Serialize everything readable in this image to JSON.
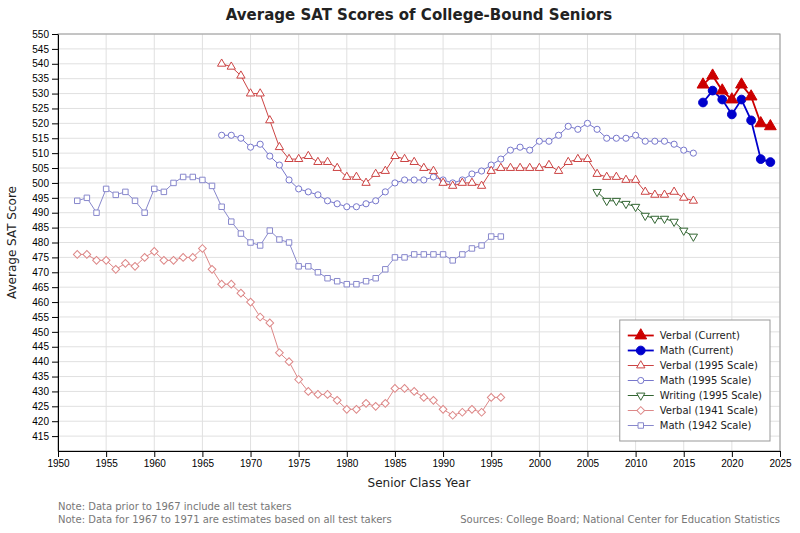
{
  "chart_data": {
    "type": "line",
    "title": "Average SAT Scores of College-Bound Seniors",
    "xlabel": "Senior Class Year",
    "ylabel": "Average SAT Score",
    "xlim": [
      1950,
      2025
    ],
    "ylim": [
      410,
      550
    ],
    "xticks": [
      1950,
      1955,
      1960,
      1965,
      1970,
      1975,
      1980,
      1985,
      1990,
      1995,
      2000,
      2005,
      2010,
      2015,
      2020,
      2025
    ],
    "yticks": [
      415,
      420,
      425,
      430,
      435,
      440,
      445,
      450,
      455,
      460,
      465,
      470,
      475,
      480,
      485,
      490,
      495,
      500,
      505,
      510,
      515,
      520,
      525,
      530,
      535,
      540,
      545,
      550
    ],
    "grid": true,
    "legend": "lower right",
    "annotations": [
      "Note: Data prior to 1967 include all test takers",
      "Note: Data for 1967 to 1971 are estimates based on all test takers",
      "Sources: College Board; National Center for Education Statistics"
    ],
    "series": [
      {
        "name": "Verbal (Current)",
        "color": "#cc0000",
        "marker": "triangle-up",
        "x": [
          2017,
          2018,
          2019,
          2020,
          2021,
          2022,
          2023,
          2024
        ],
        "values": [
          533,
          536,
          531,
          528,
          533,
          529,
          520,
          519
        ]
      },
      {
        "name": "Math (Current)",
        "color": "#0000cc",
        "marker": "circle",
        "x": [
          2017,
          2018,
          2019,
          2020,
          2021,
          2022,
          2023,
          2024
        ],
        "values": [
          527,
          531,
          528,
          523,
          528,
          521,
          508,
          507
        ]
      },
      {
        "name": "Verbal (1995 Scale)",
        "color": "#cc4444",
        "marker": "triangle-up-open",
        "x": [
          1967,
          1968,
          1969,
          1970,
          1971,
          1972,
          1973,
          1974,
          1975,
          1976,
          1977,
          1978,
          1979,
          1980,
          1981,
          1982,
          1983,
          1984,
          1985,
          1986,
          1987,
          1988,
          1989,
          1990,
          1991,
          1992,
          1993,
          1994,
          1995,
          1996,
          1997,
          1998,
          1999,
          2000,
          2001,
          2002,
          2003,
          2004,
          2005,
          2006,
          2007,
          2008,
          2009,
          2010,
          2011,
          2012,
          2013,
          2014,
          2015,
          2016
        ],
        "values": [
          540,
          539,
          536,
          530,
          530,
          521,
          512,
          508,
          508,
          509,
          507,
          507,
          505,
          502,
          502,
          500,
          503,
          504,
          509,
          508,
          507,
          505,
          504,
          500,
          499,
          500,
          500,
          499,
          504,
          505,
          505,
          505,
          505,
          505,
          506,
          504,
          507,
          508,
          508,
          503,
          502,
          502,
          501,
          501,
          497,
          496,
          496,
          497,
          495,
          494
        ]
      },
      {
        "name": "Math (1995 Scale)",
        "color": "#7777cc",
        "marker": "circle-open",
        "x": [
          1967,
          1968,
          1969,
          1970,
          1971,
          1972,
          1973,
          1974,
          1975,
          1976,
          1977,
          1978,
          1979,
          1980,
          1981,
          1982,
          1983,
          1984,
          1985,
          1986,
          1987,
          1988,
          1989,
          1990,
          1991,
          1992,
          1993,
          1994,
          1995,
          1996,
          1997,
          1998,
          1999,
          2000,
          2001,
          2002,
          2003,
          2004,
          2005,
          2006,
          2007,
          2008,
          2009,
          2010,
          2011,
          2012,
          2013,
          2014,
          2015,
          2016
        ],
        "values": [
          516,
          516,
          515,
          512,
          513,
          509,
          506,
          501,
          498,
          497,
          496,
          494,
          493,
          492,
          492,
          493,
          494,
          497,
          500,
          501,
          501,
          501,
          502,
          501,
          500,
          501,
          503,
          504,
          506,
          508,
          511,
          512,
          511,
          514,
          514,
          516,
          519,
          518,
          520,
          518,
          515,
          515,
          515,
          516,
          514,
          514,
          514,
          513,
          511,
          510
        ]
      },
      {
        "name": "Writing (1995 Scale)",
        "color": "#336633",
        "marker": "triangle-down-open",
        "x": [
          2006,
          2007,
          2008,
          2009,
          2010,
          2011,
          2012,
          2013,
          2014,
          2015,
          2016
        ],
        "values": [
          497,
          494,
          494,
          493,
          492,
          489,
          488,
          488,
          487,
          484,
          482
        ]
      },
      {
        "name": "Verbal (1941 Scale)",
        "color": "#dd8888",
        "marker": "diamond-open",
        "x": [
          1952,
          1953,
          1954,
          1955,
          1956,
          1957,
          1958,
          1959,
          1960,
          1961,
          1962,
          1963,
          1964,
          1965,
          1966,
          1967,
          1968,
          1969,
          1970,
          1971,
          1972,
          1973,
          1974,
          1975,
          1976,
          1977,
          1978,
          1979,
          1980,
          1981,
          1982,
          1983,
          1984,
          1985,
          1986,
          1987,
          1988,
          1989,
          1990,
          1991,
          1992,
          1993,
          1994,
          1995,
          1996
        ],
        "values": [
          476,
          476,
          474,
          474,
          471,
          473,
          472,
          475,
          477,
          474,
          474,
          475,
          475,
          478,
          471,
          466,
          466,
          463,
          460,
          455,
          453,
          443,
          440,
          434,
          430,
          429,
          429,
          427,
          424,
          424,
          426,
          425,
          426,
          431,
          431,
          430,
          428,
          427,
          424,
          422,
          423,
          424,
          423,
          428,
          428
        ]
      },
      {
        "name": "Math (1942 Scale)",
        "color": "#8888cc",
        "marker": "square-open",
        "x": [
          1952,
          1953,
          1954,
          1955,
          1956,
          1957,
          1958,
          1959,
          1960,
          1961,
          1962,
          1963,
          1964,
          1965,
          1966,
          1967,
          1968,
          1969,
          1970,
          1971,
          1972,
          1973,
          1974,
          1975,
          1976,
          1977,
          1978,
          1979,
          1980,
          1981,
          1982,
          1983,
          1984,
          1985,
          1986,
          1987,
          1988,
          1989,
          1990,
          1991,
          1992,
          1993,
          1994,
          1995,
          1996
        ],
        "values": [
          494,
          495,
          490,
          498,
          496,
          497,
          494,
          490,
          498,
          497,
          500,
          502,
          502,
          501,
          499,
          492,
          487,
          483,
          480,
          479,
          484,
          481,
          480,
          472,
          472,
          470,
          468,
          467,
          466,
          466,
          467,
          468,
          471,
          475,
          475,
          476,
          476,
          476,
          476,
          474,
          476,
          478,
          479,
          482,
          482
        ]
      }
    ]
  }
}
